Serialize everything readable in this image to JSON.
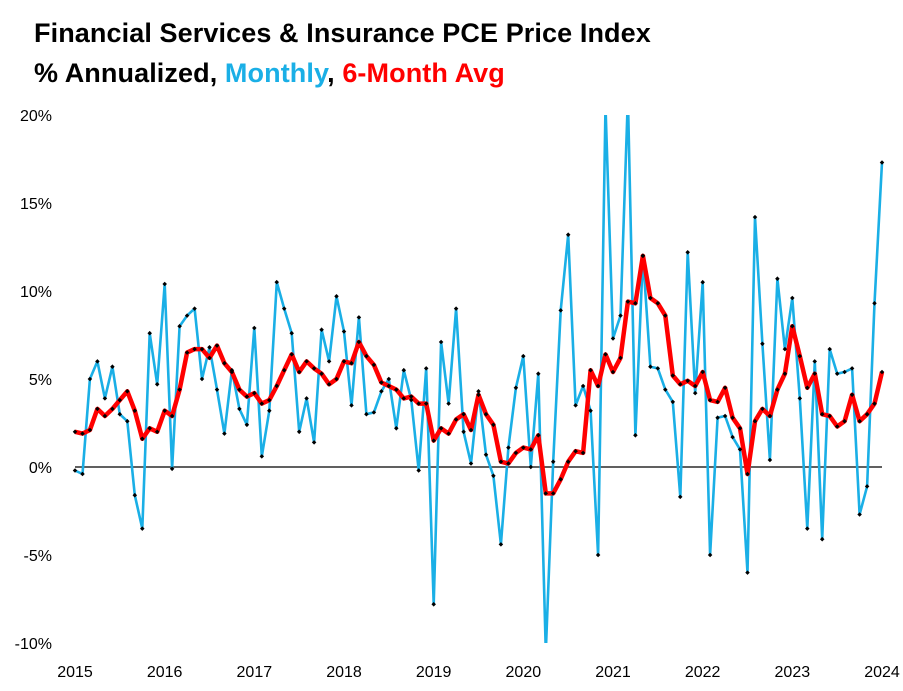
{
  "title": {
    "line1": "Financial Services & Insurance PCE Price Index",
    "line2_prefix": "% Annualized, ",
    "line2_monthly": "Monthly",
    "line2_sep": ", ",
    "line2_avg": "6-Month Avg"
  },
  "colors": {
    "monthly": "#1AAFE6",
    "avg": "#FF0000",
    "marker": "#000000",
    "zero_line": "#000000",
    "text": "#000000"
  },
  "chart_data": {
    "type": "line",
    "title": "Financial Services & Insurance PCE Price Index",
    "subtitle": "% Annualized, Monthly, 6-Month Avg",
    "xlabel": "",
    "ylabel": "",
    "x_start": "2015-01",
    "x_range": [
      2015.0,
      2024.0
    ],
    "ylim": [
      -10,
      20
    ],
    "yticks": [
      -10,
      -5,
      0,
      5,
      10,
      15,
      20
    ],
    "ytick_labels": [
      "-10%",
      "-5%",
      "0%",
      "5%",
      "10%",
      "15%",
      "20%"
    ],
    "xticks": [
      2015,
      2016,
      2017,
      2018,
      2019,
      2020,
      2021,
      2022,
      2023,
      2024
    ],
    "xtick_labels": [
      "2015",
      "2016",
      "2017",
      "2018",
      "2019",
      "2020",
      "2021",
      "2022",
      "2023",
      "2024"
    ],
    "grid": false,
    "legend": "in-title",
    "series": [
      {
        "name": "Monthly",
        "values": [
          -0.2,
          -0.4,
          5.0,
          6.0,
          3.9,
          5.7,
          3.0,
          2.6,
          -1.6,
          -3.5,
          7.6,
          4.7,
          10.4,
          -0.1,
          8.0,
          8.6,
          9.0,
          5.0,
          6.8,
          4.4,
          1.9,
          5.5,
          3.3,
          2.4,
          7.9,
          0.6,
          3.2,
          10.5,
          9.0,
          7.6,
          2.0,
          3.9,
          1.4,
          7.8,
          6.0,
          9.7,
          7.7,
          3.5,
          8.5,
          3.0,
          3.1,
          4.3,
          5.0,
          2.2,
          5.5,
          3.8,
          -0.2,
          5.6,
          -7.8,
          7.1,
          3.6,
          9.0,
          2.0,
          0.2,
          4.3,
          0.7,
          -0.5,
          -4.4,
          1.1,
          4.5,
          6.3,
          0.0,
          5.3,
          -10.5,
          0.3,
          8.9,
          13.2,
          3.5,
          4.6,
          3.2,
          -5.0,
          20.5,
          7.3,
          8.6,
          21.0,
          1.8,
          12.0,
          5.7,
          5.6,
          4.4,
          3.7,
          -1.7,
          12.2,
          4.2,
          10.5,
          -5.0,
          2.8,
          2.9,
          1.7,
          1.0,
          -6.0,
          14.2,
          7.0,
          0.4,
          10.7,
          6.7,
          9.6,
          3.9,
          -3.5,
          6.0,
          -4.1,
          6.7,
          5.3,
          5.4,
          5.6,
          -2.7,
          -1.1,
          9.3,
          17.3
        ]
      },
      {
        "name": "6-Month Avg",
        "values": [
          2.0,
          1.9,
          2.1,
          3.3,
          2.9,
          3.3,
          3.8,
          4.3,
          3.2,
          1.6,
          2.2,
          2.0,
          3.2,
          2.9,
          4.4,
          6.5,
          6.7,
          6.7,
          6.2,
          6.9,
          5.9,
          5.4,
          4.4,
          4.0,
          4.2,
          3.6,
          3.8,
          4.6,
          5.5,
          6.4,
          5.4,
          6.0,
          5.6,
          5.3,
          4.7,
          5.0,
          6.0,
          5.9,
          7.1,
          6.3,
          5.8,
          4.8,
          4.6,
          4.4,
          3.9,
          4.0,
          3.6,
          3.6,
          1.5,
          2.2,
          1.9,
          2.7,
          3.0,
          2.1,
          4.1,
          3.0,
          2.4,
          0.3,
          0.2,
          0.8,
          1.1,
          1.0,
          1.8,
          -1.5,
          -1.5,
          -0.7,
          0.3,
          0.9,
          0.8,
          5.5,
          4.6,
          6.4,
          5.4,
          6.2,
          9.4,
          9.3,
          12.0,
          9.6,
          9.3,
          8.6,
          5.2,
          4.7,
          4.9,
          4.6,
          5.4,
          3.8,
          3.7,
          4.5,
          2.8,
          2.2,
          -0.4,
          2.6,
          3.3,
          2.9,
          4.4,
          5.3,
          8.0,
          6.3,
          4.5,
          5.3,
          3.0,
          2.9,
          2.3,
          2.6,
          4.1,
          2.6,
          3.0,
          3.6,
          5.4
        ]
      }
    ]
  }
}
